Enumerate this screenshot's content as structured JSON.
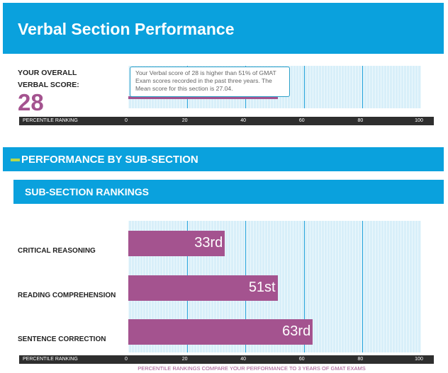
{
  "header": {
    "title": "Verbal Section Performance"
  },
  "overall": {
    "label": "YOUR OVERALL VERBAL SCORE:",
    "score": 28,
    "tooltip": "Your Verbal score of 28 is higher than 51% of GMAT Exam scores recorded in the past three years. The Mean score for this section is 27.04.",
    "percentile": 51,
    "axis_label": "PERCENTILE RANKING",
    "xlim": [
      0,
      100
    ],
    "xticks": [
      0,
      20,
      40,
      60,
      80,
      100
    ]
  },
  "subsection": {
    "title": "PERFORMANCE BY SUB-SECTION",
    "rankings_title": "SUB-SECTION RANKINGS",
    "categories": [
      "CRITICAL REASONING",
      "READING COMPREHENSION",
      "SENTENCE CORRECTION"
    ],
    "values": [
      33,
      51,
      63
    ],
    "value_labels": [
      "33rd",
      "51st",
      "63rd"
    ],
    "axis_label": "PERCENTILE RANKING",
    "xlim": [
      0,
      100
    ],
    "xticks": [
      0,
      20,
      40,
      60,
      80,
      100
    ],
    "footnote": "PERCENTILE RANKINGS COMPARE YOUR PERFORMANCE TO 3 YEARS OF GMAT EXAMS"
  }
}
